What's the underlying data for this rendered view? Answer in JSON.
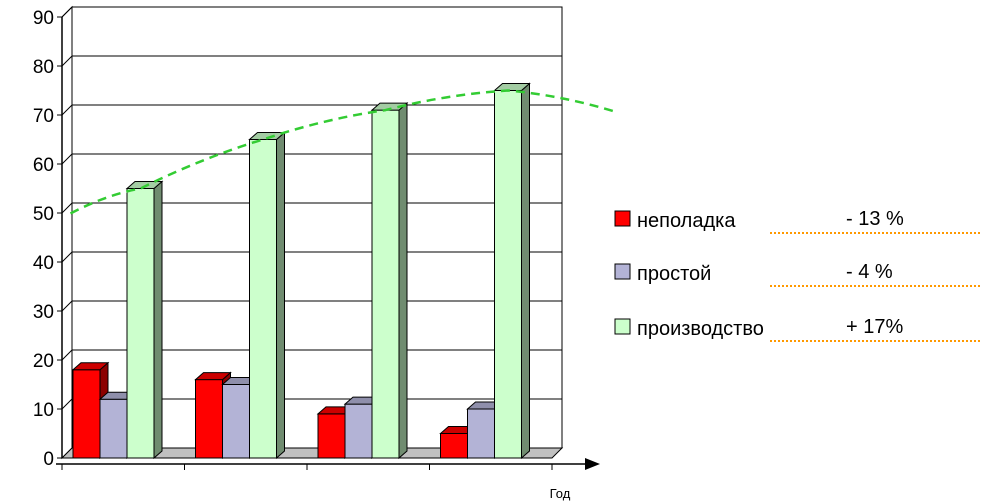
{
  "chart_data": {
    "type": "bar",
    "categories": [
      "",
      "",
      "",
      ""
    ],
    "series": [
      {
        "name": "неполадка",
        "values": [
          18,
          16,
          9,
          5
        ],
        "color": "#ff0000",
        "change": "- 13 %"
      },
      {
        "name": "простой",
        "values": [
          12,
          15,
          11,
          10
        ],
        "color": "#b3b3d6",
        "change": "-   4 %"
      },
      {
        "name": "производство",
        "values": [
          55,
          65,
          71,
          75
        ],
        "color": "#ccffcc",
        "change": "+ 17%"
      }
    ],
    "trendline": {
      "series": "производство",
      "style": "dashed",
      "color": "#33cc33"
    },
    "title": "",
    "xlabel": "Год",
    "ylabel": "",
    "ylim": [
      0,
      90
    ],
    "yticks": [
      0,
      10,
      20,
      30,
      40,
      50,
      60,
      70,
      80,
      90
    ],
    "grid": true,
    "legend_position": "right",
    "leader_line_color": "#ff9900"
  }
}
